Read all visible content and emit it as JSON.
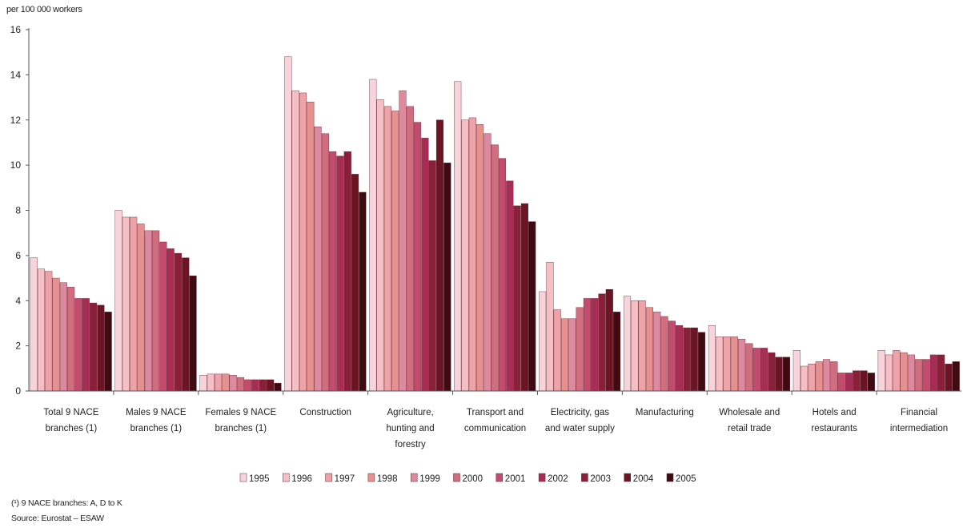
{
  "chart_data": {
    "type": "bar",
    "ylabel": "per 100 000 workers",
    "ylim": [
      0,
      16
    ],
    "yticks": [
      "0",
      "2",
      "4",
      "6",
      "8",
      "10",
      "12",
      "14",
      "16"
    ],
    "grid": false,
    "legend_position": "bottom",
    "categories": [
      [
        "Total 9 NACE",
        "branches (1)"
      ],
      [
        "Males 9 NACE",
        "branches (1)"
      ],
      [
        "Females 9 NACE",
        "branches (1)"
      ],
      [
        "Construction"
      ],
      [
        "Agriculture,",
        "hunting and",
        "forestry"
      ],
      [
        "Transport and",
        "communication"
      ],
      [
        "Electricity, gas",
        "and water supply"
      ],
      [
        "Manufacturing"
      ],
      [
        "Wholesale and",
        "retail trade"
      ],
      [
        "Hotels and",
        "restaurants"
      ],
      [
        "Financial",
        "intermediation"
      ]
    ],
    "series": [
      {
        "name": "1995",
        "color": "#f7d4dc",
        "values": [
          5.9,
          8.0,
          0.7,
          14.8,
          13.8,
          13.7,
          4.4,
          4.2,
          2.9,
          1.8,
          1.8
        ]
      },
      {
        "name": "1996",
        "color": "#f4c0c6",
        "values": [
          5.4,
          7.7,
          0.75,
          13.3,
          12.9,
          12.0,
          5.7,
          4.0,
          2.4,
          1.1,
          1.6
        ]
      },
      {
        "name": "1997",
        "color": "#eea3a8",
        "values": [
          5.3,
          7.7,
          0.75,
          13.2,
          12.6,
          12.1,
          3.6,
          4.0,
          2.4,
          1.2,
          1.8
        ]
      },
      {
        "name": "1998",
        "color": "#e6918f",
        "values": [
          5.0,
          7.4,
          0.75,
          12.8,
          12.4,
          11.8,
          3.2,
          3.7,
          2.4,
          1.3,
          1.7
        ]
      },
      {
        "name": "1999",
        "color": "#dd8aa0",
        "values": [
          4.8,
          7.1,
          0.7,
          11.7,
          13.3,
          11.4,
          3.2,
          3.5,
          2.3,
          1.4,
          1.6
        ]
      },
      {
        "name": "2000",
        "color": "#d06d7f",
        "values": [
          4.6,
          7.1,
          0.6,
          11.4,
          12.6,
          10.9,
          3.7,
          3.3,
          2.1,
          1.3,
          1.4
        ]
      },
      {
        "name": "2001",
        "color": "#c34b6e",
        "values": [
          4.1,
          6.6,
          0.5,
          10.6,
          11.9,
          10.3,
          4.1,
          3.1,
          1.9,
          0.8,
          1.4
        ]
      },
      {
        "name": "2002",
        "color": "#a82d55",
        "values": [
          4.1,
          6.3,
          0.5,
          10.4,
          11.2,
          9.3,
          4.1,
          2.9,
          1.9,
          0.8,
          1.6
        ]
      },
      {
        "name": "2003",
        "color": "#8a1f3a",
        "values": [
          3.9,
          6.1,
          0.5,
          10.6,
          10.2,
          8.2,
          4.3,
          2.8,
          1.7,
          0.9,
          1.6
        ]
      },
      {
        "name": "2004",
        "color": "#6a1424",
        "values": [
          3.8,
          5.9,
          0.5,
          9.6,
          12.0,
          8.3,
          4.5,
          2.8,
          1.5,
          0.9,
          1.2
        ]
      },
      {
        "name": "2005",
        "color": "#3e0b12",
        "values": [
          3.5,
          5.1,
          0.35,
          8.8,
          10.1,
          7.5,
          3.5,
          2.6,
          1.5,
          0.8,
          1.3
        ]
      }
    ]
  },
  "footnotes": {
    "note1": "(¹) 9 NACE branches: A, D to K",
    "source": "Source: Eurostat – ESAW"
  }
}
